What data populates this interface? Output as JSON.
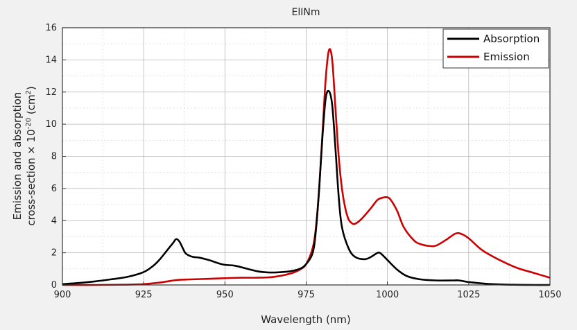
{
  "chart_data": {
    "type": "line",
    "title": "ElINm",
    "xlabel": "Wavelength (nm)",
    "ylabel_line1": "Emission and absorption",
    "ylabel_line2_prefix": "cross-section × 10",
    "ylabel_exp1": "-20",
    "ylabel_mid": " (cm",
    "ylabel_exp2": "2",
    "ylabel_end": ")",
    "xlim": [
      900,
      1050
    ],
    "ylim": [
      0,
      16
    ],
    "xticks": [
      900,
      925,
      950,
      975,
      1000,
      1025,
      1050
    ],
    "yticks": [
      0,
      2,
      4,
      6,
      8,
      10,
      12,
      14,
      16
    ],
    "grid": true,
    "legend_position": "top-right",
    "series": [
      {
        "name": "Absorption",
        "color": "#000000",
        "x": [
          900,
          905,
          910,
          915,
          920,
          925,
          928,
          930,
          932,
          934,
          935,
          936,
          937,
          938,
          940,
          942,
          945,
          948,
          950,
          953,
          956,
          960,
          963,
          966,
          970,
          973,
          975,
          977,
          978,
          979,
          980,
          981,
          982,
          983,
          984,
          985,
          986,
          988,
          990,
          993,
          995,
          997,
          998,
          1000,
          1003,
          1006,
          1010,
          1015,
          1020,
          1022,
          1025,
          1030,
          1035,
          1040,
          1045,
          1050
        ],
        "y": [
          0.05,
          0.12,
          0.22,
          0.35,
          0.5,
          0.8,
          1.2,
          1.6,
          2.1,
          2.6,
          2.85,
          2.7,
          2.3,
          1.95,
          1.75,
          1.7,
          1.55,
          1.35,
          1.25,
          1.2,
          1.05,
          0.85,
          0.78,
          0.78,
          0.85,
          1.0,
          1.3,
          2.0,
          3.4,
          6.0,
          9.2,
          11.6,
          12.05,
          11.2,
          8.5,
          5.5,
          3.6,
          2.3,
          1.75,
          1.6,
          1.75,
          2.0,
          1.95,
          1.55,
          0.95,
          0.55,
          0.35,
          0.28,
          0.28,
          0.28,
          0.18,
          0.08,
          0.03,
          0.01,
          0.0,
          0.0
        ]
      },
      {
        "name": "Emission",
        "color": "#cc0000",
        "x": [
          900,
          910,
          920,
          925,
          930,
          935,
          940,
          945,
          950,
          955,
          960,
          965,
          970,
          973,
          975,
          977,
          978,
          979,
          980,
          981,
          982,
          983,
          984,
          985,
          986,
          987,
          988,
          989,
          990,
          992,
          995,
          997,
          999,
          1000,
          1001,
          1003,
          1005,
          1008,
          1010,
          1013,
          1015,
          1018,
          1021,
          1023,
          1025,
          1028,
          1030,
          1035,
          1040,
          1045,
          1050
        ],
        "y": [
          0.0,
          0.0,
          0.02,
          0.05,
          0.15,
          0.3,
          0.35,
          0.38,
          0.42,
          0.45,
          0.45,
          0.5,
          0.7,
          0.95,
          1.3,
          2.3,
          3.6,
          6.0,
          9.4,
          12.8,
          14.6,
          14.0,
          11.0,
          8.0,
          6.0,
          4.8,
          4.1,
          3.85,
          3.8,
          4.1,
          4.8,
          5.3,
          5.45,
          5.45,
          5.3,
          4.6,
          3.6,
          2.8,
          2.55,
          2.42,
          2.45,
          2.8,
          3.2,
          3.15,
          2.9,
          2.35,
          2.05,
          1.5,
          1.05,
          0.75,
          0.45
        ]
      }
    ]
  }
}
